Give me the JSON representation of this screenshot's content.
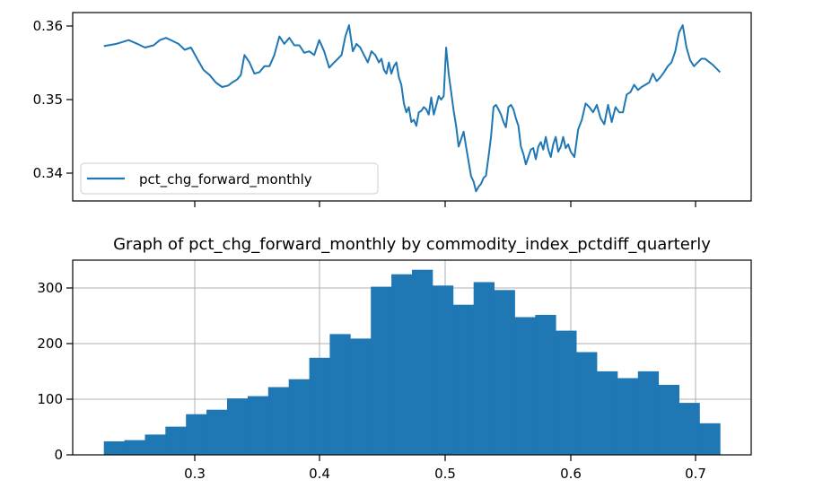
{
  "chart_data": [
    {
      "type": "line",
      "title": "",
      "xlabel": "",
      "ylabel": "",
      "xlim": [
        0.2,
        0.745
      ],
      "ylim": [
        0.3359,
        0.3612
      ],
      "xticks": [
        0.3,
        0.4,
        0.5,
        0.6,
        0.7
      ],
      "yticks": [
        0.34,
        0.35,
        0.36
      ],
      "ytick_labels": [
        "0.34",
        "0.35",
        "0.36"
      ],
      "show_xtick_labels": false,
      "grid": false,
      "legend": {
        "placement": "lower-left",
        "entries": [
          "pct_chg_forward_monthly"
        ]
      },
      "colors": {
        "series": "#1f77b4"
      },
      "series": [
        {
          "name": "pct_chg_forward_monthly",
          "x": [
            0.225,
            0.235,
            0.245,
            0.252,
            0.258,
            0.265,
            0.27,
            0.275,
            0.28,
            0.285,
            0.29,
            0.295,
            0.3,
            0.305,
            0.31,
            0.315,
            0.32,
            0.325,
            0.328,
            0.332,
            0.335,
            0.338,
            0.342,
            0.346,
            0.35,
            0.354,
            0.358,
            0.362,
            0.366,
            0.37,
            0.374,
            0.378,
            0.382,
            0.386,
            0.39,
            0.394,
            0.398,
            0.402,
            0.406,
            0.41,
            0.413,
            0.416,
            0.419,
            0.422,
            0.425,
            0.428,
            0.431,
            0.434,
            0.437,
            0.44,
            0.443,
            0.446,
            0.448,
            0.45,
            0.452,
            0.454,
            0.456,
            0.458,
            0.46,
            0.462,
            0.464,
            0.466,
            0.468,
            0.47,
            0.472,
            0.474,
            0.476,
            0.478,
            0.48,
            0.482,
            0.484,
            0.486,
            0.488,
            0.49,
            0.492,
            0.494,
            0.496,
            0.498,
            0.5,
            0.502,
            0.504,
            0.506,
            0.508,
            0.51,
            0.512,
            0.514,
            0.516,
            0.518,
            0.52,
            0.522,
            0.524,
            0.526,
            0.528,
            0.53,
            0.532,
            0.534,
            0.536,
            0.538,
            0.54,
            0.542,
            0.544,
            0.546,
            0.548,
            0.55,
            0.552,
            0.554,
            0.556,
            0.558,
            0.56,
            0.562,
            0.564,
            0.566,
            0.568,
            0.57,
            0.572,
            0.574,
            0.576,
            0.578,
            0.58,
            0.582,
            0.584,
            0.586,
            0.588,
            0.59,
            0.592,
            0.594,
            0.596,
            0.598,
            0.6,
            0.603,
            0.606,
            0.609,
            0.612,
            0.615,
            0.618,
            0.621,
            0.624,
            0.627,
            0.63,
            0.633,
            0.636,
            0.639,
            0.642,
            0.645,
            0.648,
            0.651,
            0.654,
            0.657,
            0.66,
            0.663,
            0.666,
            0.669,
            0.672,
            0.675,
            0.678,
            0.681,
            0.684,
            0.687,
            0.69,
            0.693,
            0.696,
            0.699,
            0.702,
            0.705,
            0.708,
            0.711,
            0.714,
            0.717,
            0.72
          ],
          "y": [
            0.3567,
            0.357,
            0.3575,
            0.357,
            0.3565,
            0.3568,
            0.3575,
            0.3578,
            0.3574,
            0.357,
            0.3562,
            0.3565,
            0.355,
            0.3535,
            0.3528,
            0.3518,
            0.3512,
            0.3514,
            0.3518,
            0.3522,
            0.3528,
            0.3555,
            0.3545,
            0.353,
            0.3532,
            0.354,
            0.354,
            0.3555,
            0.358,
            0.357,
            0.3578,
            0.3568,
            0.3568,
            0.3558,
            0.356,
            0.3555,
            0.3575,
            0.356,
            0.3538,
            0.3545,
            0.355,
            0.3555,
            0.358,
            0.3595,
            0.356,
            0.357,
            0.3565,
            0.3555,
            0.3545,
            0.356,
            0.3555,
            0.3545,
            0.355,
            0.3535,
            0.353,
            0.3545,
            0.353,
            0.354,
            0.3545,
            0.3525,
            0.3515,
            0.349,
            0.3478,
            0.3485,
            0.3465,
            0.3468,
            0.346,
            0.3478,
            0.348,
            0.3485,
            0.3482,
            0.3475,
            0.3498,
            0.3475,
            0.3487,
            0.35,
            0.3495,
            0.35,
            0.3565,
            0.353,
            0.3505,
            0.348,
            0.346,
            0.3432,
            0.3442,
            0.3452,
            0.3432,
            0.3412,
            0.3392,
            0.3385,
            0.3372,
            0.3378,
            0.3382,
            0.339,
            0.3393,
            0.3418,
            0.3445,
            0.3485,
            0.3488,
            0.3482,
            0.3475,
            0.3465,
            0.3458,
            0.3485,
            0.3488,
            0.3482,
            0.347,
            0.346,
            0.3432,
            0.3422,
            0.3408,
            0.3418,
            0.3428,
            0.343,
            0.3415,
            0.3432,
            0.3438,
            0.3428,
            0.3445,
            0.3428,
            0.3418,
            0.3435,
            0.3445,
            0.3425,
            0.3432,
            0.3445,
            0.343,
            0.3435,
            0.3425,
            0.3418,
            0.3455,
            0.3468,
            0.349,
            0.3485,
            0.3478,
            0.3488,
            0.347,
            0.3462,
            0.3488,
            0.3465,
            0.3485,
            0.3478,
            0.3478,
            0.3502,
            0.3505,
            0.3515,
            0.3508,
            0.3512,
            0.3515,
            0.3518,
            0.353,
            0.352,
            0.3525,
            0.3532,
            0.354,
            0.3545,
            0.356,
            0.3585,
            0.3595,
            0.3565,
            0.3548,
            0.354,
            0.3545,
            0.355,
            0.355,
            0.3546,
            0.3542,
            0.3537,
            0.3532
          ]
        }
      ]
    },
    {
      "type": "bar",
      "title": "Graph of pct_chg_forward_monthly by commodity_index_pctdiff_quarterly",
      "xlabel": "",
      "ylabel": "",
      "xlim": [
        0.2,
        0.745
      ],
      "ylim": [
        0,
        345
      ],
      "xticks": [
        0.3,
        0.4,
        0.5,
        0.6,
        0.7
      ],
      "xtick_labels": [
        "0.3",
        "0.4",
        "0.5",
        "0.6",
        "0.7"
      ],
      "yticks": [
        0,
        100,
        200,
        300
      ],
      "ytick_labels": [
        "0",
        "100",
        "200",
        "300"
      ],
      "grid": true,
      "colors": {
        "bars": "#1f77b4",
        "grid": "#b0b0b0"
      },
      "bin_start": 0.225,
      "bin_width": 0.0165,
      "values": [
        24,
        26,
        36,
        50,
        72,
        80,
        100,
        104,
        120,
        134,
        172,
        214,
        206,
        298,
        320,
        328,
        300,
        266,
        306,
        292,
        244,
        248,
        220,
        182,
        148,
        136,
        148,
        124,
        92,
        56
      ]
    }
  ]
}
